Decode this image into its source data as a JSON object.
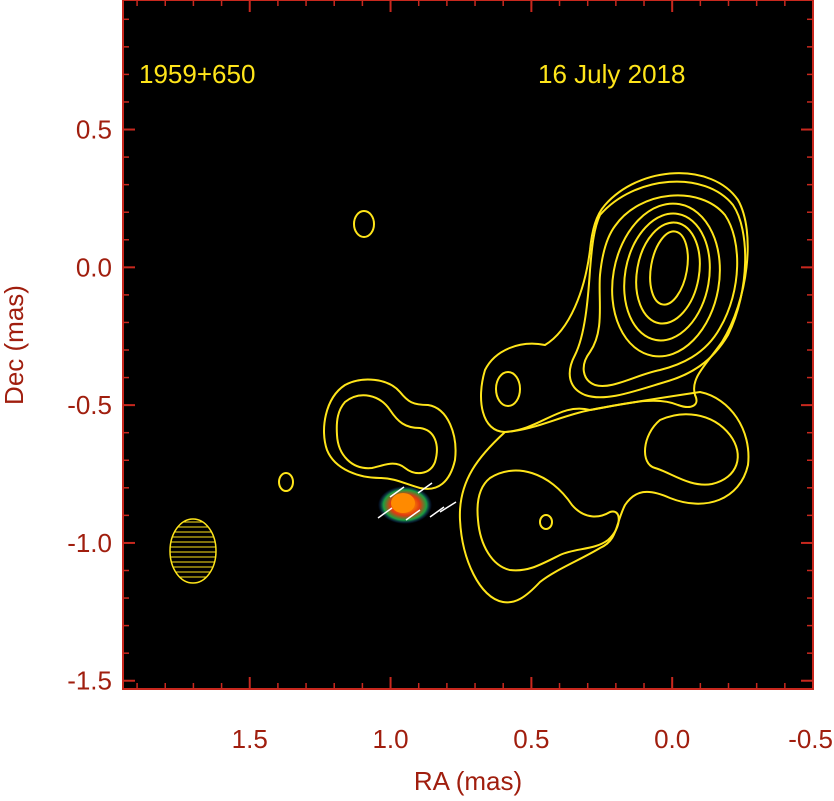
{
  "chart_data": {
    "type": "contour",
    "source": "1959+650",
    "date": "16 July 2018",
    "xlabel": "RA (mas)",
    "ylabel": "Dec (mas)",
    "xlim": [
      1.95,
      -0.5
    ],
    "ylim": [
      -1.53,
      0.97
    ],
    "x_ticks": [
      {
        "value": 1.5,
        "label": "1.5"
      },
      {
        "value": 1.0,
        "label": "1.0"
      },
      {
        "value": 0.5,
        "label": "0.5"
      },
      {
        "value": 0.0,
        "label": "0.0"
      },
      {
        "value": -0.5,
        "label": "-0.5"
      }
    ],
    "y_ticks": [
      {
        "value": 0.5,
        "label": "0.5"
      },
      {
        "value": 0.0,
        "label": "0.0"
      },
      {
        "value": -0.5,
        "label": "-0.5"
      },
      {
        "value": -1.0,
        "label": "-1.0"
      },
      {
        "value": -1.5,
        "label": "-1.5"
      }
    ],
    "x_minor_step": 0.1,
    "y_minor_step": 0.1,
    "core_peak": {
      "ra": 0.0,
      "dec": 0.0
    },
    "polarized_feature": {
      "ra": 0.95,
      "dec": -0.85
    },
    "beam": {
      "ra": 1.73,
      "dec": -1.02,
      "major_mas": 0.23,
      "minor_mas": 0.17,
      "pa_deg": 0
    },
    "colors": {
      "background": "#000000",
      "frame": "#c8281e",
      "text": "#a01e0e",
      "contour": "#ffe51a",
      "polarization": "#ff7a00",
      "evpa": "#ffffff"
    }
  }
}
